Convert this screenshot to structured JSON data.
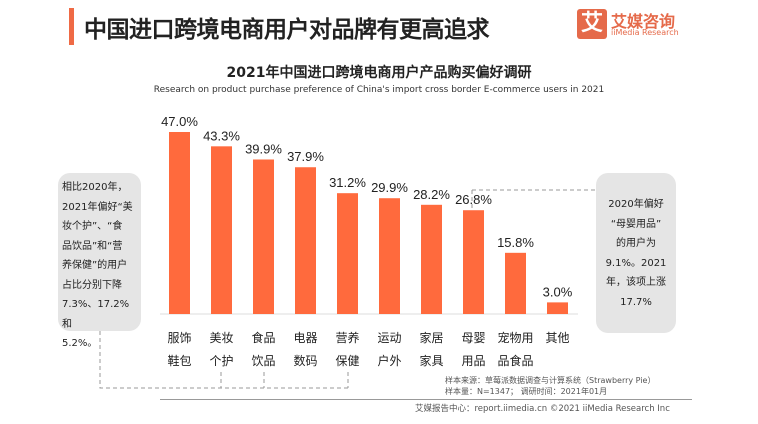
{
  "header": {
    "title": "中国进口跨境电商用户对品牌有更高追求",
    "logo_cn": "艾媒咨询",
    "logo_en": "iiMedia Research",
    "logo_glyph": "艾"
  },
  "chart_data": {
    "type": "bar",
    "title": "2021年中国进口跨境电商用户产品购买偏好调研",
    "subtitle": "Research on product purchase preference of China's import cross border E-commerce users in 2021",
    "categories": [
      [
        "服饰",
        "鞋包"
      ],
      [
        "美妆",
        "个护"
      ],
      [
        "食品",
        "饮品"
      ],
      [
        "电器",
        "数码"
      ],
      [
        "营养",
        "保健"
      ],
      [
        "运动",
        "户外"
      ],
      [
        "家居",
        "家具"
      ],
      [
        "母婴",
        "用品"
      ],
      [
        "宠物用",
        "品食品"
      ],
      [
        "其他",
        ""
      ]
    ],
    "values": [
      47.0,
      43.3,
      39.9,
      37.9,
      31.2,
      29.9,
      28.2,
      26.8,
      15.8,
      3.0
    ],
    "labels": [
      "47.0%",
      "43.3%",
      "39.9%",
      "37.9%",
      "31.2%",
      "29.9%",
      "28.2%",
      "26.8%",
      "15.8%",
      "3.0%"
    ],
    "ylim": [
      0,
      50
    ],
    "grid": false,
    "bar_color": "#ff6a3d"
  },
  "notes": {
    "left": [
      "相比2020年，",
      "2021年偏好“美",
      "妆个护”、“食",
      "品饮品”和“营",
      "养保健”的用户",
      "占比分别下降",
      "7.3%、17.2%和",
      "5.2%。"
    ],
    "right": [
      "2020年偏好",
      "“母婴用品”",
      "的用户为",
      "9.1%。2021",
      "年，该项上涨",
      "17.7%"
    ]
  },
  "source": {
    "line1": "样本来源：草莓派数据调查与计算系统（Strawberry Pie）",
    "line2": "样本量：N=1347； 调研时间：2021年01月"
  },
  "footer": {
    "text": "艾媒报告中心：report.iimedia.cn  ©2021 iiMedia Research Inc"
  }
}
